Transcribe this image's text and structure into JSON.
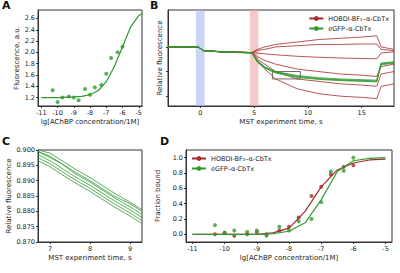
{
  "chart_data": [
    {
      "type": "scatter",
      "title": "A",
      "x_label": "lg[AChBP concentration/1M]",
      "y_label": "Fluorescence, a.u.",
      "xlim": [
        -11.2,
        -4.8
      ],
      "ylim": [
        1.05,
        2.75
      ],
      "xticks": [
        -11,
        -10,
        -9,
        -8,
        -7,
        -6,
        -5
      ],
      "yticks": [
        1.2,
        1.4,
        1.6,
        1.8,
        {
          "value": 2,
          "label": "2.0"
        },
        2.2,
        2.4,
        2.6
      ],
      "grid": false,
      "series": [
        {
          "type": "scatter",
          "color": "#2e9b2e",
          "marker": "circle",
          "x": [
            -10.3,
            -10,
            -9.7,
            -9.3,
            -9,
            -8.7,
            -8.3,
            -8,
            -7.7,
            -7.3,
            -7,
            -6.7,
            -6.3,
            -6
          ],
          "values": [
            1.33,
            1.12,
            1.2,
            1.22,
            1.2,
            1.15,
            1.35,
            1.25,
            1.38,
            1.42,
            1.62,
            1.9,
            2.0,
            2.1
          ]
        },
        {
          "type": "line",
          "color": "#2e9b2e",
          "x": [
            -11,
            -10,
            -9,
            -8.5,
            -8,
            -7.5,
            -7,
            -6.5,
            -6,
            -5.5,
            -5,
            -4.8
          ],
          "values": [
            1.2,
            1.2,
            1.21,
            1.22,
            1.25,
            1.32,
            1.48,
            1.75,
            2.1,
            2.45,
            2.65,
            2.69
          ]
        }
      ]
    },
    {
      "type": "line",
      "title": "B",
      "x_label": "MST experiment time, s",
      "y_label": "Relative fluorescence",
      "xlim": [
        -3,
        18
      ],
      "ylim": [
        0.76,
        1.15
      ],
      "xticks": [
        0,
        5,
        10,
        15
      ],
      "yticks": [
        0.8,
        0.9,
        1
      ],
      "tick_labels": "x",
      "grid": false,
      "legend": "upper right",
      "bands": [
        {
          "xlim": [
            -0.4,
            0.4
          ],
          "color": "#a9b6f0"
        },
        {
          "xlim": [
            4.6,
            5.4
          ],
          "color": "#f2a6a6"
        }
      ],
      "x": [
        -3,
        -1,
        -0.2,
        0.3,
        2,
        4,
        4.8,
        5.3,
        6,
        7,
        9,
        11,
        13,
        15,
        16.4,
        16.8,
        18
      ],
      "series": [
        {
          "name": "HOBDI-BF₂–α-CbTx",
          "color": "#a52a2a",
          "values": [
            1,
            1,
            1,
            0.985,
            0.98,
            0.978,
            0.977,
            0.99,
            1,
            1.01,
            1.02,
            1.03,
            1.035,
            1.04,
            1.045,
            1,
            0.99
          ]
        },
        {
          "name": "HOBDI-BF₂–α-CbTx",
          "color": "#a52a2a",
          "values": [
            1,
            1,
            1,
            0.985,
            0.98,
            0.978,
            0.977,
            0.975,
            0.972,
            0.968,
            0.962,
            0.958,
            0.955,
            0.953,
            0.952,
            0.975,
            0.98
          ]
        },
        {
          "name": "HOBDI-BF₂–α-CbTx",
          "color": "#a52a2a",
          "values": [
            1,
            1,
            1,
            0.985,
            0.98,
            0.978,
            0.977,
            0.96,
            0.945,
            0.93,
            0.91,
            0.9,
            0.89,
            0.885,
            0.88,
            0.92,
            0.93
          ]
        },
        {
          "name": "HOBDI-BF₂–α-CbTx",
          "color": "#a52a2a",
          "values": [
            1,
            1,
            1,
            0.985,
            0.98,
            0.978,
            0.977,
            0.95,
            0.93,
            0.9,
            0.87,
            0.86,
            0.85,
            0.845,
            0.84,
            0.89,
            0.9
          ]
        },
        {
          "name": "HOBDI-BF₂–α-CbTx",
          "color": "#a52a2a",
          "values": [
            1,
            1,
            1,
            0.985,
            0.98,
            0.978,
            0.977,
            0.94,
            0.91,
            0.87,
            0.83,
            0.81,
            0.8,
            0.795,
            0.79,
            0.84,
            0.85
          ]
        },
        {
          "name": "HOBDI-BF₂–α-CbTx",
          "color": "#a52a2a",
          "values": [
            1,
            1,
            1,
            0.985,
            0.98,
            0.978,
            0.977,
            0.985,
            0.99,
            1,
            1.005,
            1.01,
            1.01,
            1.012,
            1.012,
            0.99,
            0.985
          ]
        },
        {
          "name": "eGFP–α-CbTx",
          "color": "#2e9b2e",
          "values": [
            1,
            1,
            1,
            0.985,
            0.98,
            0.977,
            0.975,
            0.94,
            0.915,
            0.896,
            0.879,
            0.87,
            0.865,
            0.862,
            0.86,
            0.93,
            0.935
          ]
        },
        {
          "name": "eGFP–α-CbTx",
          "color": "#2e9b2e",
          "values": [
            1,
            1,
            1,
            0.986,
            0.981,
            0.978,
            0.976,
            0.942,
            0.918,
            0.898,
            0.881,
            0.872,
            0.867,
            0.864,
            0.862,
            0.932,
            0.937
          ]
        },
        {
          "name": "eGFP–α-CbTx",
          "color": "#2e9b2e",
          "values": [
            1,
            1,
            1,
            0.984,
            0.979,
            0.976,
            0.974,
            0.938,
            0.913,
            0.894,
            0.876,
            0.868,
            0.863,
            0.86,
            0.858,
            0.928,
            0.933
          ]
        },
        {
          "name": "eGFP–α-CbTx",
          "color": "#2e9b2e",
          "values": [
            1,
            1,
            1,
            0.985,
            0.98,
            0.977,
            0.975,
            0.945,
            0.92,
            0.9,
            0.884,
            0.875,
            0.87,
            0.867,
            0.865,
            0.935,
            0.94
          ]
        }
      ]
    },
    {
      "type": "line",
      "title": "C",
      "x_label": "MST experiment time, s",
      "y_label": "Relative fluorescence",
      "xlim": [
        6.7,
        9.3
      ],
      "ylim": [
        0.87,
        0.9
      ],
      "xticks": [
        7,
        8,
        9
      ],
      "yticks": [
        {
          "value": 0.87,
          "label": "0.870"
        },
        0.875,
        {
          "value": 0.88,
          "label": "0.880"
        },
        0.885,
        {
          "value": 0.89,
          "label": "0.890"
        },
        0.895,
        {
          "value": 0.9,
          "label": "0.900"
        }
      ],
      "grid": false,
      "x": [
        6.7,
        7,
        7.3,
        7.6,
        8,
        8.3,
        8.6,
        9,
        9.3
      ],
      "series": [
        {
          "color": "#2e9b2e",
          "values": [
            0.8985,
            0.8965,
            0.894,
            0.8915,
            0.8885,
            0.886,
            0.8835,
            0.8805,
            0.878
          ]
        },
        {
          "color": "#2e9b2e",
          "values": [
            0.8995,
            0.8975,
            0.8955,
            0.8925,
            0.8895,
            0.887,
            0.8845,
            0.8815,
            0.879
          ]
        },
        {
          "color": "#2e9b2e",
          "values": [
            0.8975,
            0.8955,
            0.893,
            0.8905,
            0.8875,
            0.885,
            0.8825,
            0.8795,
            0.877
          ]
        },
        {
          "color": "#2e9b2e",
          "values": [
            0.9,
            0.899,
            0.8965,
            0.894,
            0.891,
            0.8885,
            0.886,
            0.883,
            0.8805
          ]
        },
        {
          "color": "#2e9b2e",
          "values": [
            0.8965,
            0.8945,
            0.892,
            0.8895,
            0.8865,
            0.884,
            0.8815,
            0.8785,
            0.876
          ]
        },
        {
          "color": "#2e9b2e",
          "values": [
            0.8995,
            0.898,
            0.8955,
            0.893,
            0.89,
            0.8875,
            0.885,
            0.8825,
            0.88
          ]
        }
      ]
    },
    {
      "type": "scatter",
      "title": "D",
      "x_label": "lg[AChBP concentration/1M]",
      "y_label": "Fraction bound",
      "xlim": [
        -11.2,
        -4.8
      ],
      "ylim": [
        -0.1,
        1.1
      ],
      "xticks": [
        -11,
        -10,
        -9,
        -8,
        -7,
        -6,
        -5
      ],
      "yticks": [
        {
          "value": 0,
          "label": "0.0"
        },
        0.2,
        0.4,
        0.6,
        0.8,
        {
          "value": 1,
          "label": "1.0"
        }
      ],
      "grid": false,
      "legend": "upper left",
      "series": [
        {
          "type": "scatter",
          "color": "#a52a2a",
          "marker": "circle",
          "x": [
            -10.3,
            -10,
            -9.7,
            -9.3,
            -9,
            -8.7,
            -8.3,
            -8,
            -7.7,
            -7.3,
            -7,
            -6.7,
            -6.3,
            -6
          ],
          "values": [
            0,
            0.02,
            -0.02,
            0,
            0.03,
            0,
            0.05,
            0.1,
            0.22,
            0.5,
            0.62,
            0.78,
            0.88,
            0.9
          ]
        },
        {
          "type": "scatter",
          "color": "#2e9b2e",
          "marker": "circle",
          "x": [
            -10.3,
            -10,
            -9.7,
            -9.3,
            -9,
            -8.7,
            -8.3,
            -8,
            -7.7,
            -7.3,
            -7,
            -6.7,
            -6.3,
            -6
          ],
          "values": [
            0.12,
            0.02,
            0.05,
            0.03,
            0.05,
            -0.02,
            0.1,
            0.05,
            0.17,
            0.2,
            0.42,
            0.82,
            0.83,
            1
          ]
        },
        {
          "type": "line",
          "name": "HOBDI-BF₂–α-CbTx",
          "color": "#a52a2a",
          "x": [
            -11,
            -10,
            -9,
            -8.5,
            -8,
            -7.5,
            -7,
            -6.5,
            -6,
            -5.5,
            -5
          ],
          "values": [
            0,
            0,
            0,
            0.02,
            0.08,
            0.3,
            0.62,
            0.84,
            0.93,
            0.97,
            0.98
          ]
        },
        {
          "type": "line",
          "name": "eGFP–α-CbTx",
          "color": "#2e9b2e",
          "x": [
            -11,
            -10,
            -9,
            -8.5,
            -8,
            -7.5,
            -7,
            -6.5,
            -6,
            -5.5,
            -5
          ],
          "values": [
            0,
            0,
            0,
            0.01,
            0.04,
            0.15,
            0.45,
            0.82,
            0.96,
            0.99,
            1
          ]
        }
      ]
    }
  ]
}
